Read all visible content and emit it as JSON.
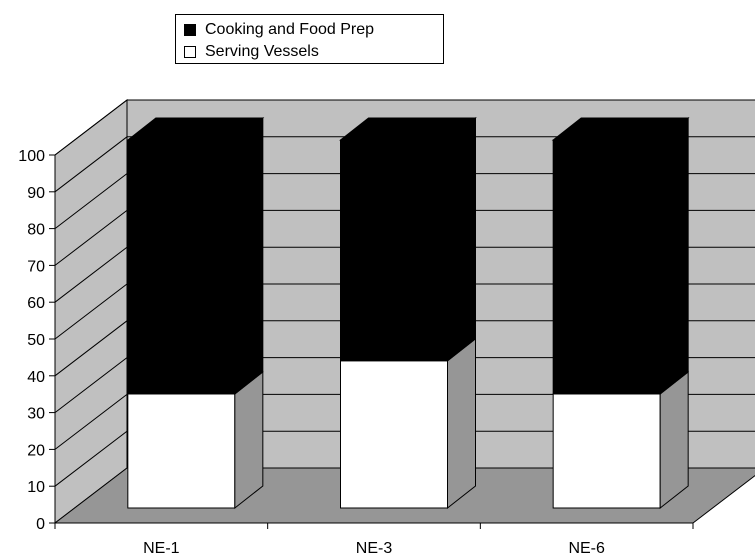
{
  "chart_data": {
    "type": "bar",
    "stacked": true,
    "three_d": true,
    "categories": [
      "NE-1",
      "NE-3",
      "NE-6"
    ],
    "series": [
      {
        "name": "Serving Vessels",
        "values": [
          31,
          40,
          31
        ],
        "color": "#ffffff"
      },
      {
        "name": "Cooking and Food Prep",
        "values": [
          69,
          60,
          69
        ],
        "color": "#000000"
      }
    ],
    "ylim": [
      0,
      100
    ],
    "yticks": [
      0,
      10,
      20,
      30,
      40,
      50,
      60,
      70,
      80,
      90,
      100
    ],
    "grid": true,
    "legend_placement": "top",
    "colors": {
      "wall": "#c0c0c0",
      "floor": "#969696",
      "bar_side": "#969696"
    }
  }
}
